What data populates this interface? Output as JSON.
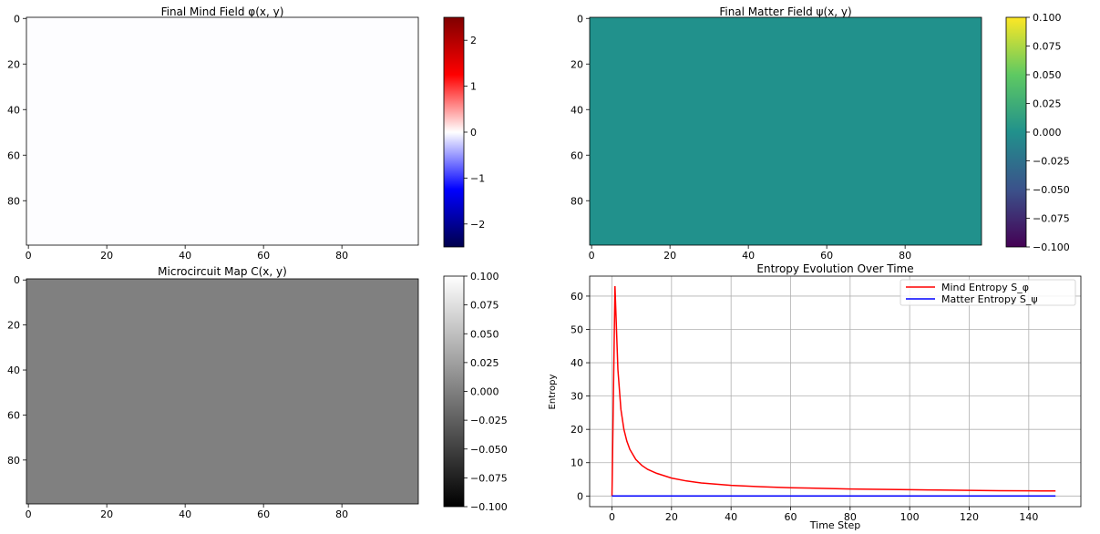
{
  "chart_data": [
    {
      "type": "heatmap",
      "title": "Final Mind Field φ(x, y)",
      "colormap": "seismic",
      "fill_color": "#fdfdff",
      "xticks": [
        "0",
        "20",
        "40",
        "60",
        "80"
      ],
      "yticks": [
        "0",
        "20",
        "40",
        "60",
        "80"
      ],
      "axis_range": [
        0,
        100
      ],
      "colorbar": {
        "min": -2.5,
        "max": 2.5,
        "ticks": [
          "2",
          "1",
          "0",
          "−1",
          "−2"
        ],
        "tick_values": [
          2,
          1,
          0,
          -1,
          -2
        ]
      }
    },
    {
      "type": "heatmap",
      "title": "Final Matter Field ψ(x, y)",
      "colormap": "viridis",
      "fill_color": "#21918c",
      "xticks": [
        "0",
        "20",
        "40",
        "60",
        "80"
      ],
      "yticks": [
        "0",
        "20",
        "40",
        "60",
        "80"
      ],
      "axis_range": [
        0,
        100
      ],
      "colorbar": {
        "min": -0.1,
        "max": 0.1,
        "ticks": [
          "0.100",
          "0.075",
          "0.050",
          "0.025",
          "0.000",
          "−0.025",
          "−0.050",
          "−0.075",
          "−0.100"
        ],
        "tick_values": [
          0.1,
          0.075,
          0.05,
          0.025,
          0,
          -0.025,
          -0.05,
          -0.075,
          -0.1
        ]
      }
    },
    {
      "type": "heatmap",
      "title": "Microcircuit Map C(x, y)",
      "colormap": "gray",
      "fill_color": "#808080",
      "xticks": [
        "0",
        "20",
        "40",
        "60",
        "80"
      ],
      "yticks": [
        "0",
        "20",
        "40",
        "60",
        "80"
      ],
      "axis_range": [
        0,
        100
      ],
      "colorbar": {
        "min": -0.1,
        "max": 0.1,
        "ticks": [
          "0.100",
          "0.075",
          "0.050",
          "0.025",
          "0.000",
          "−0.025",
          "−0.050",
          "−0.075",
          "−0.100"
        ],
        "tick_values": [
          0.1,
          0.075,
          0.05,
          0.025,
          0,
          -0.025,
          -0.05,
          -0.075,
          -0.1
        ]
      }
    },
    {
      "type": "line",
      "title": "Entropy Evolution Over Time",
      "xlabel": "Time Step",
      "ylabel": "Entropy",
      "xlim": [
        -7.5,
        157.5
      ],
      "ylim": [
        -3.2,
        66
      ],
      "xticks": [
        0,
        20,
        40,
        60,
        80,
        100,
        120,
        140
      ],
      "yticks": [
        0,
        10,
        20,
        30,
        40,
        50,
        60
      ],
      "grid": true,
      "legend": "upper right",
      "series": [
        {
          "name": "Mind Entropy S_φ",
          "color": "#ff0000",
          "x": [
            0,
            1,
            2,
            3,
            4,
            5,
            6,
            8,
            10,
            12,
            15,
            20,
            25,
            30,
            40,
            50,
            60,
            70,
            80,
            90,
            100,
            110,
            120,
            130,
            140,
            149
          ],
          "y": [
            0,
            63,
            38,
            26,
            20,
            16.5,
            14,
            11,
            9.2,
            8,
            6.8,
            5.4,
            4.5,
            3.9,
            3.2,
            2.8,
            2.5,
            2.3,
            2.1,
            2.0,
            1.9,
            1.8,
            1.7,
            1.6,
            1.55,
            1.5
          ]
        },
        {
          "name": "Matter Entropy S_ψ",
          "color": "#0000ff",
          "x": [
            0,
            149
          ],
          "y": [
            0,
            0
          ]
        }
      ]
    }
  ]
}
